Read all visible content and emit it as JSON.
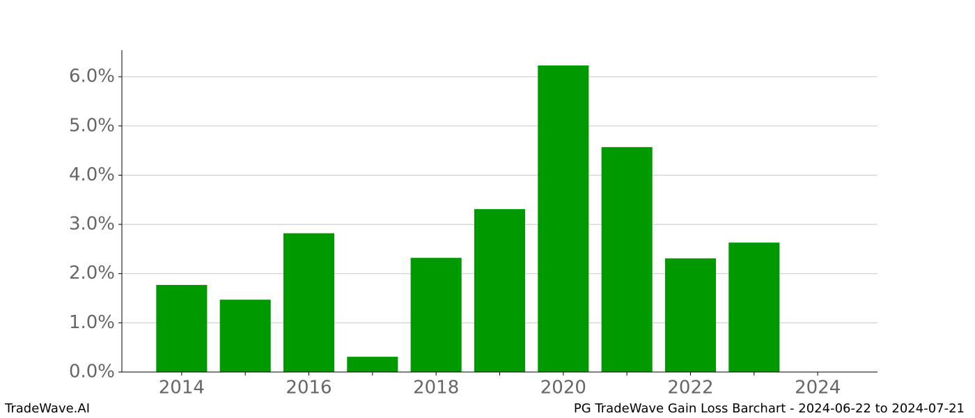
{
  "chart_data": {
    "type": "bar",
    "x": [
      2014,
      2015,
      2016,
      2017,
      2018,
      2019,
      2020,
      2021,
      2022,
      2023,
      2024
    ],
    "values": [
      1.77,
      1.47,
      2.82,
      0.31,
      2.32,
      3.31,
      6.23,
      4.57,
      2.31,
      2.63,
      0
    ],
    "color": "#009900",
    "bar_width": 0.8,
    "xlim": [
      2013.06,
      2024.94
    ],
    "xticks": [
      2014,
      2016,
      2018,
      2020,
      2022,
      2024
    ],
    "xminor_ticks": [
      2015,
      2017,
      2019,
      2021,
      2023
    ],
    "ylim": [
      0,
      6.54
    ],
    "yticks": [
      {
        "value": 0,
        "label": "0.0%"
      },
      {
        "value": 1,
        "label": "1.0%"
      },
      {
        "value": 2,
        "label": "2.0%"
      },
      {
        "value": 3,
        "label": "3.0%"
      },
      {
        "value": 4,
        "label": "4.0%"
      },
      {
        "value": 5,
        "label": "5.0%"
      },
      {
        "value": 6,
        "label": "6.0%"
      }
    ],
    "grid": true
  },
  "footer": {
    "left": "TradeWave.AI",
    "right": "PG TradeWave Gain Loss Barchart - 2024-06-22 to 2024-07-21"
  }
}
